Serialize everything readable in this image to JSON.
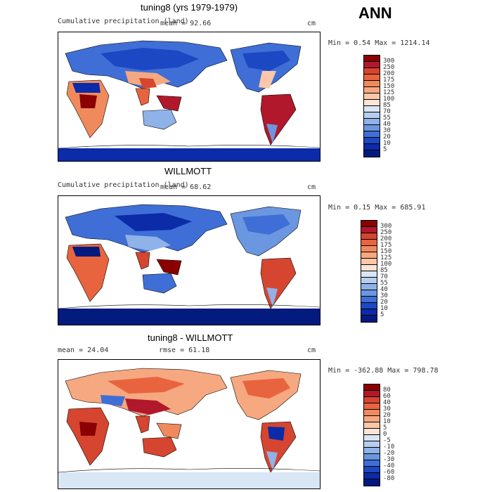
{
  "season": "ANN",
  "panels": [
    {
      "title": "tuning8 (yrs 1979-1979)",
      "left_text": "Cumulative precipitation (land)",
      "stat_text": "mean =   92.66",
      "units": "cm",
      "minmax": "Min =   0.54  Max = 1214.14",
      "levels": [
        "300",
        "250",
        "200",
        "175",
        "150",
        "125",
        "100",
        "85",
        "70",
        "55",
        "40",
        "30",
        "20",
        "10",
        "5"
      ],
      "colors": [
        "#8b0000",
        "#b2182b",
        "#d6452f",
        "#e8643f",
        "#f08a5d",
        "#f6a880",
        "#fcc7a8",
        "#fde5d6",
        "#d9e6f5",
        "#b5cdef",
        "#8fb2e8",
        "#6b96e0",
        "#3f6fd6",
        "#1d48c4",
        "#0b2ba8",
        "#031a7e"
      ],
      "map_style": "A"
    },
    {
      "title": "WILLMOTT",
      "left_text": "Cumulative precipitation (land)",
      "stat_text": "mean =   68.62",
      "units": "cm",
      "minmax": "Min =   0.15  Max =  685.91",
      "levels": [
        "300",
        "250",
        "200",
        "175",
        "150",
        "125",
        "100",
        "85",
        "70",
        "55",
        "40",
        "30",
        "20",
        "10",
        "5"
      ],
      "colors": [
        "#8b0000",
        "#b2182b",
        "#d6452f",
        "#e8643f",
        "#f08a5d",
        "#f6a880",
        "#fcc7a8",
        "#fde5d6",
        "#d9e6f5",
        "#b5cdef",
        "#8fb2e8",
        "#6b96e0",
        "#3f6fd6",
        "#1d48c4",
        "#0b2ba8",
        "#031a7e"
      ],
      "map_style": "B"
    },
    {
      "title": "tuning8 - WILLMOTT",
      "left_text": "mean =   24.04",
      "stat_text": "rmse =   61.18",
      "units": "cm",
      "minmax": "Min = -362.88  Max =  798.78",
      "levels": [
        "80",
        "60",
        "40",
        "30",
        "20",
        "10",
        "5",
        "0",
        "-5",
        "-10",
        "-20",
        "-30",
        "-40",
        "-60",
        "-80"
      ],
      "colors": [
        "#8b0000",
        "#b2182b",
        "#d6452f",
        "#e8643f",
        "#f08a5d",
        "#f6a880",
        "#fcc7a8",
        "#fde5d6",
        "#d9e6f5",
        "#b5cdef",
        "#8fb2e8",
        "#6b96e0",
        "#3f6fd6",
        "#1d48c4",
        "#0b2ba8",
        "#031a7e"
      ],
      "map_style": "C"
    }
  ]
}
